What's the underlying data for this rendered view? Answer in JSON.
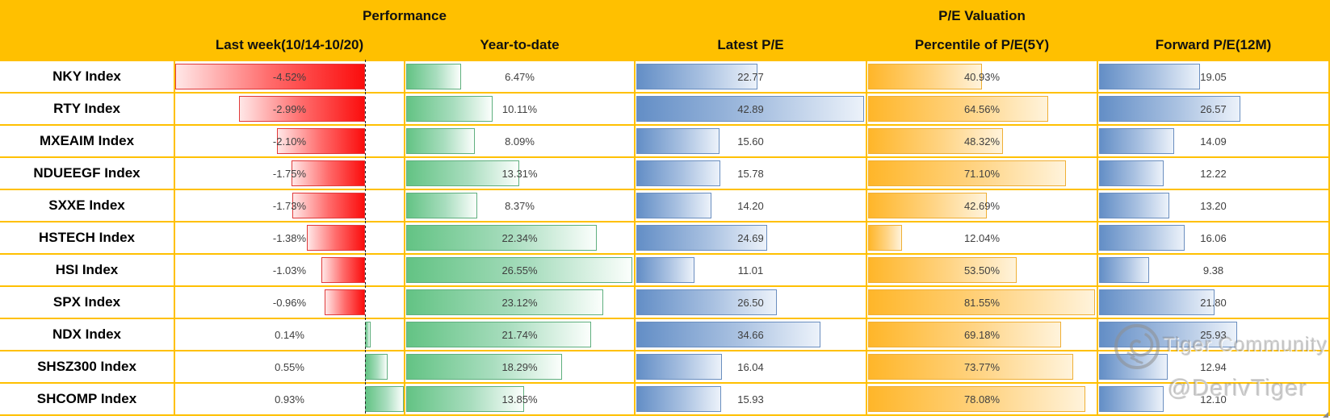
{
  "header": {
    "groups": [
      {
        "label": "Performance"
      },
      {
        "label": "P/E Valuation"
      }
    ],
    "columns": [
      "Last week(10/14-10/20)",
      "Year-to-date",
      "Latest P/E",
      "Percentile of P/E(5Y)",
      "Forward P/E(12M)"
    ]
  },
  "chart_data": {
    "type": "table",
    "column_groups": [
      {
        "label": "Performance",
        "columns": [
          "Last week(10/14-10/20)",
          "Year-to-date"
        ]
      },
      {
        "label": "P/E Valuation",
        "columns": [
          "Latest P/E",
          "Percentile of P/E(5Y)",
          "Forward P/E(12M)"
        ]
      }
    ],
    "rows": [
      {
        "index": "NKY Index",
        "cells": [
          "-4.52%",
          "6.47%",
          "22.77",
          "40.93%",
          "19.05"
        ]
      },
      {
        "index": "RTY Index",
        "cells": [
          "-2.99%",
          "10.11%",
          "42.89",
          "64.56%",
          "26.57"
        ]
      },
      {
        "index": "MXEAIM Index",
        "cells": [
          "-2.10%",
          "8.09%",
          "15.60",
          "48.32%",
          "14.09"
        ]
      },
      {
        "index": "NDUEEGF Index",
        "cells": [
          "-1.75%",
          "13.31%",
          "15.78",
          "71.10%",
          "12.22"
        ]
      },
      {
        "index": "SXXE Index",
        "cells": [
          "-1.73%",
          "8.37%",
          "14.20",
          "42.69%",
          "13.20"
        ]
      },
      {
        "index": "HSTECH Index",
        "cells": [
          "-1.38%",
          "22.34%",
          "24.69",
          "12.04%",
          "16.06"
        ]
      },
      {
        "index": "HSI Index",
        "cells": [
          "-1.03%",
          "26.55%",
          "11.01",
          "53.50%",
          "9.38"
        ]
      },
      {
        "index": "SPX Index",
        "cells": [
          "-0.96%",
          "23.12%",
          "26.50",
          "81.55%",
          "21.80"
        ]
      },
      {
        "index": "NDX Index",
        "cells": [
          "0.14%",
          "21.74%",
          "34.66",
          "69.18%",
          "25.93"
        ]
      },
      {
        "index": "SHSZ300 Index",
        "cells": [
          "0.55%",
          "18.29%",
          "16.04",
          "73.77%",
          "12.94"
        ]
      },
      {
        "index": "SHCOMP Index",
        "cells": [
          "0.93%",
          "13.85%",
          "15.93",
          "78.08%",
          "12.10"
        ]
      }
    ],
    "bar_styles": {
      "last_week_negative": "red",
      "last_week_positive": "green",
      "year_to_date": "green",
      "latest_pe": "blue",
      "pe_percentile": "orange",
      "forward_pe": "blue"
    },
    "layout_hints": {
      "last_week_axis": "dashed zero axis inside column, negatives extend left, positives extend right",
      "bars_baseline": "left edge of each cell for all other columns"
    }
  },
  "watermark": {
    "community": "Tiger Community",
    "handle": "@DerivTiger",
    "logo_icon": "tiger-logo"
  },
  "colors": {
    "header_bg": "#FFC000",
    "gridline": "#FFC000",
    "bar_red": "#FB0D0D",
    "bar_green": "#63C384",
    "bar_blue": "#638EC6",
    "bar_orange": "#FFB629",
    "value_text": "#3F3F3F"
  }
}
